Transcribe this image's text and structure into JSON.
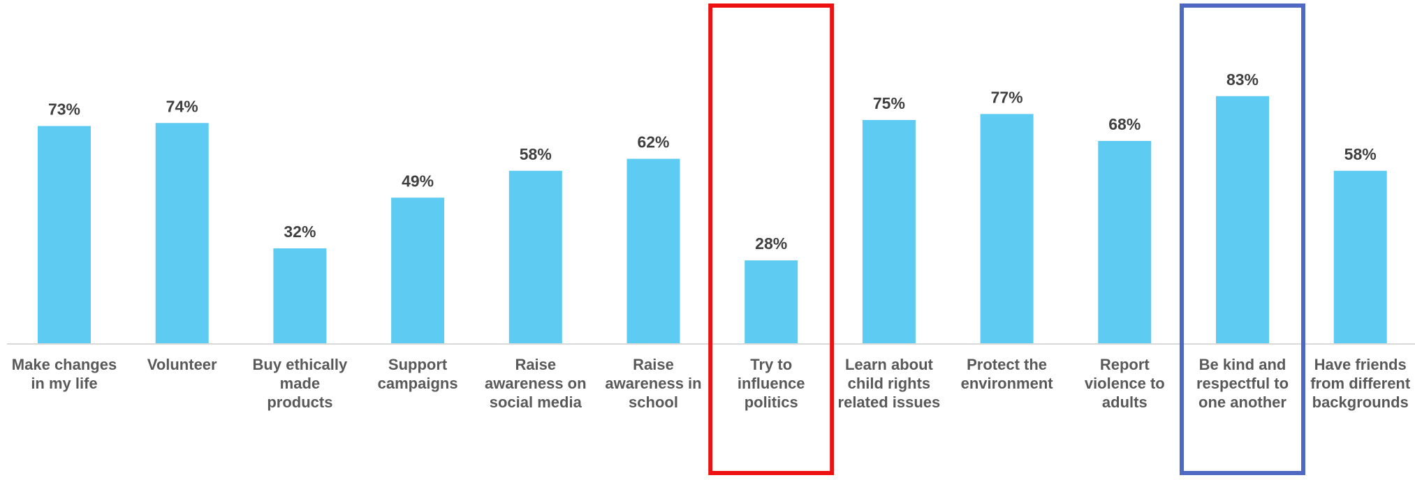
{
  "chart_data": {
    "type": "bar",
    "title": "",
    "xlabel": "",
    "ylabel": "",
    "ylim": [
      0,
      100
    ],
    "grid": false,
    "categories": [
      "Make changes in my life",
      "Volunteer",
      "Buy ethically made products",
      "Support campaigns",
      "Raise awareness on social media",
      "Raise awareness in school",
      "Try to influence politics",
      "Learn about child rights related issues",
      "Protect the environment",
      "Report violence to adults",
      "Be kind and respectful to one another",
      "Have friends from different backgrounds"
    ],
    "category_label_lines": [
      [
        "Make changes",
        "in my life"
      ],
      [
        "Volunteer"
      ],
      [
        "Buy ethically",
        "made",
        "products"
      ],
      [
        "Support",
        "campaigns"
      ],
      [
        "Raise",
        "awareness on",
        "social media"
      ],
      [
        "Raise",
        "awareness in",
        "school"
      ],
      [
        "Try to",
        "influence",
        "politics"
      ],
      [
        "Learn about",
        "child rights",
        "related issues"
      ],
      [
        "Protect the",
        "environment"
      ],
      [
        "Report",
        "violence to",
        "adults"
      ],
      [
        "Be kind and",
        "respectful to",
        "one another"
      ],
      [
        "Have friends",
        "from different",
        "backgrounds"
      ]
    ],
    "values": [
      73,
      74,
      32,
      49,
      58,
      62,
      28,
      75,
      77,
      68,
      83,
      58
    ],
    "value_labels": [
      "73%",
      "74%",
      "32%",
      "49%",
      "58%",
      "62%",
      "28%",
      "75%",
      "77%",
      "68%",
      "83%",
      "58%"
    ],
    "highlights": [
      {
        "category_index": 6,
        "color": "#ee1111"
      },
      {
        "category_index": 10,
        "color": "#4f68c4"
      }
    ]
  },
  "colors": {
    "bar": "#5ecbf2",
    "value_text": "#404040",
    "category_text": "#595959",
    "axis": "#d9d9d9"
  }
}
